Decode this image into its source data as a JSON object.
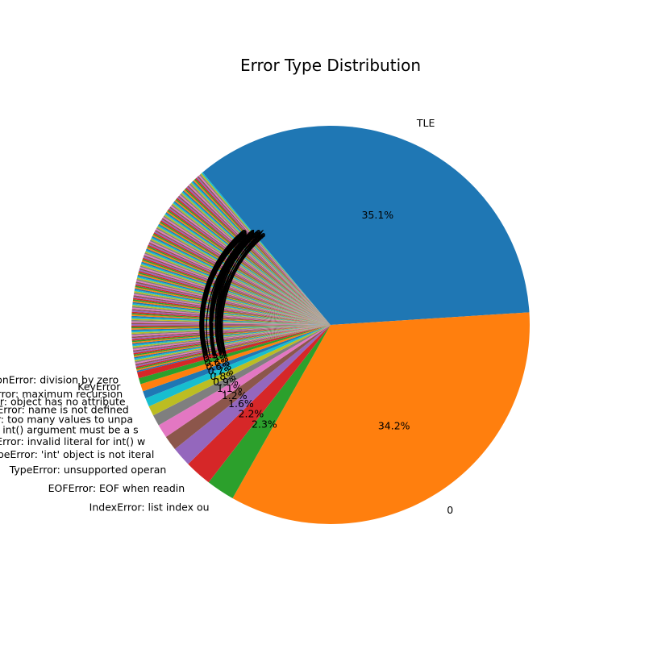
{
  "chart_data": {
    "type": "pie",
    "title": "Error Type Distribution",
    "start_angle_deg": 130,
    "direction": "clockwise",
    "slices": [
      {
        "label": "TLE",
        "percent": 35.1,
        "color": "#1f77b4"
      },
      {
        "label": "0",
        "percent": 34.2,
        "color": "#ff7f0e"
      },
      {
        "label": "IndexError: list index ou",
        "percent": 2.3,
        "color": "#2ca02c"
      },
      {
        "label": "EOFError: EOF when readin",
        "percent": 2.2,
        "color": "#d62728"
      },
      {
        "label": "TypeError: unsupported operan",
        "percent": 1.6,
        "color": "#9467bd"
      },
      {
        "label": "TypeError: 'int' object is not iteral",
        "percent": 1.2,
        "color": "#8c564b"
      },
      {
        "label": "ValueError: invalid literal for int() w",
        "percent": 1.1,
        "color": "#e377c2"
      },
      {
        "label": "TypeError: int() argument must be a s",
        "percent": 0.9,
        "color": "#7f7f7f"
      },
      {
        "label": "ValueError: too many values to unpa",
        "percent": 0.8,
        "color": "#bcbd22"
      },
      {
        "label": "NameError: name is not defined",
        "percent": 0.7,
        "color": "#17becf"
      },
      {
        "label": "AttributeError: object has no attribute",
        "percent": 0.6,
        "color": "#1f77b4"
      },
      {
        "label": "RuntimeError: maximum recursion",
        "percent": 0.6,
        "color": "#ff7f0e"
      },
      {
        "label": "KeyError",
        "percent": 0.5,
        "color": "#2ca02c"
      },
      {
        "label": "ZeroDivisionError: division by zero",
        "percent": 0.5,
        "color": "#d62728"
      }
    ],
    "other_slices": {
      "count": 160,
      "total_percent": 17.7,
      "palette": [
        "#1f77b4",
        "#ff7f0e",
        "#2ca02c",
        "#d62728",
        "#9467bd",
        "#8c564b",
        "#e377c2",
        "#7f7f7f",
        "#bcbd22",
        "#17becf"
      ]
    }
  }
}
